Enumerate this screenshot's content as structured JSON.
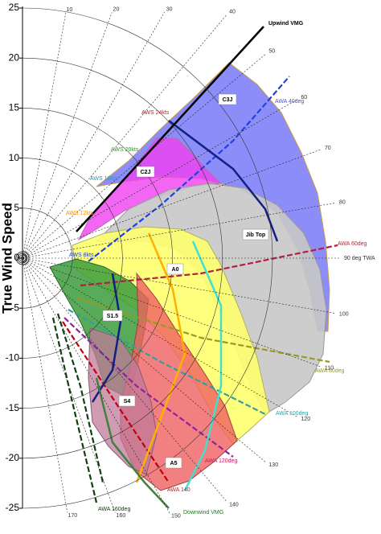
{
  "chart_data": {
    "type": "polar",
    "ylabel": "True Wind Speed",
    "ylim": [
      -25,
      25
    ],
    "yticks": [
      -25,
      -20,
      -15,
      -10,
      -5,
      0,
      5,
      10,
      15,
      20,
      25
    ],
    "angle_ticks": [
      10,
      20,
      30,
      40,
      50,
      60,
      70,
      80,
      {
        "value": 90,
        "label": "90 deg TWA"
      },
      100,
      110,
      120,
      130,
      140,
      150,
      160,
      170
    ],
    "vmg_labels": [
      "Upwind VMG",
      "Downwind VMG"
    ],
    "sails": [
      "C3J",
      "C2J",
      "Jib Top",
      "A0",
      "S1.5",
      "S4",
      "A5"
    ],
    "aws_labels": [
      "AWS 24kts",
      "AWS 20kts",
      "AWS 16kts",
      "AWS 12kts",
      "AWS 8kts"
    ],
    "awa_labels": [
      "AWA 40deg",
      "AWA 60deg",
      "AWA 80deg",
      "AWA 100deg",
      "AWA 120deg",
      "AWA 140",
      "AWA 160deg"
    ]
  }
}
